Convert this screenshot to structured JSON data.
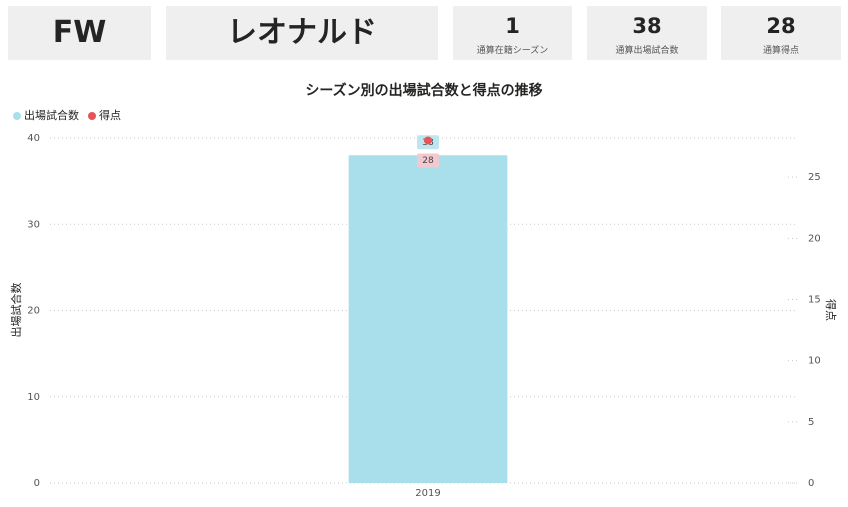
{
  "cards": [
    {
      "value": "FW"
    },
    {
      "value": "レオナルド"
    },
    {
      "value": 1,
      "label": "通算在籍シーズン"
    },
    {
      "value": 38,
      "label": "通算出場試合数"
    },
    {
      "value": 28,
      "label": "通算得点"
    }
  ],
  "chart_data": {
    "type": "combo",
    "title": "シーズン別の出場試合数と得点の推移",
    "categories": [
      "2019"
    ],
    "series": [
      {
        "name": "出場試合数",
        "type": "bar",
        "color": "#a8dfeb",
        "values": [
          38
        ]
      },
      {
        "name": "得点",
        "type": "line",
        "color": "#e8535a",
        "axis": "y2",
        "values": [
          28
        ]
      }
    ],
    "ylabel": "出場試合数",
    "y2label": "得点",
    "ylim": [
      0,
      40
    ],
    "yticks": [
      0,
      10,
      20,
      30,
      40
    ],
    "y2lim": [
      0,
      28.2
    ],
    "y2ticks": [
      0,
      5,
      10,
      15,
      20,
      25
    ],
    "grid": true,
    "legend": "top-left",
    "data_labels": true
  }
}
